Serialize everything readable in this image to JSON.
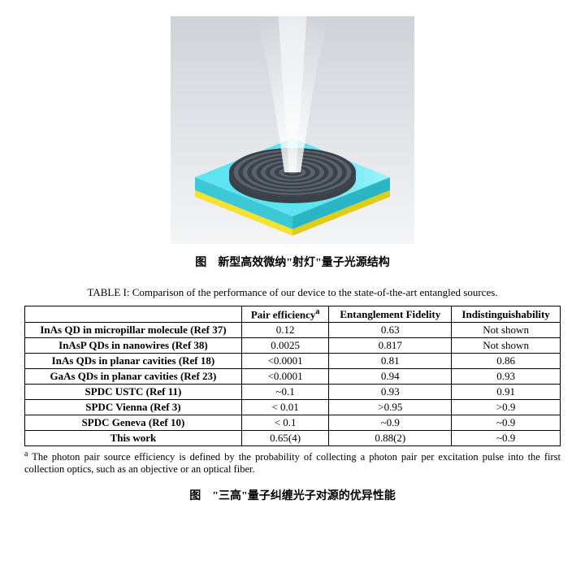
{
  "figure1": {
    "caption": "图　新型高效微纳\"射灯\"量子光源结构",
    "render": {
      "bg_gradient_top": "#cfd3d9",
      "bg_gradient_bottom": "#f4f5f7",
      "slab_top_color": "#5ee4f0",
      "slab_side_color": "#3cc8d6",
      "base_strip_color": "#f7e233",
      "disc_color_dark": "#3b4149",
      "disc_color_light": "#5a636d",
      "beam_color": "#ffffff",
      "ring_count": 14
    }
  },
  "table1": {
    "title": "TABLE I: Comparison of the performance of our device to the state-of-the-art entangled sources.",
    "headers": {
      "blank": "",
      "col1_html": "Pair efficiency<span class='sup'>a</span>",
      "col2": "Entanglement Fidelity",
      "col3": "Indistinguishability"
    },
    "rows": [
      {
        "label": "InAs QD in micropillar molecule (Ref 37)",
        "c1": "0.12",
        "c2": "0.63",
        "c3": "Not shown"
      },
      {
        "label": "InAsP QDs in nanowires (Ref 38)",
        "c1": "0.0025",
        "c2": "0.817",
        "c3": "Not shown"
      },
      {
        "label": "InAs QDs in planar cavities (Ref 18)",
        "c1": "<0.0001",
        "c2": "0.81",
        "c3": "0.86"
      },
      {
        "label": "GaAs QDs in planar cavities (Ref 23)",
        "c1": "<0.0001",
        "c2": "0.94",
        "c3": "0.93"
      },
      {
        "label": "SPDC USTC (Ref 11)",
        "c1": "~0.1",
        "c2": "0.93",
        "c3": "0.91"
      },
      {
        "label": "SPDC Vienna (Ref 3)",
        "c1": "< 0.01",
        "c2": ">0.95",
        "c3": ">0.9"
      },
      {
        "label": "SPDC Geneva (Ref 10)",
        "c1": "< 0.1",
        "c2": "~0.9",
        "c3": "~0.9"
      },
      {
        "label": "This work",
        "c1": "0.65(4)",
        "c2": "0.88(2)",
        "c3": "~0.9"
      }
    ],
    "footnote_html": "<span class='sup'>a</span> The photon pair source efficiency is defined by the probability of collecting a photon pair per excitation pulse into the first collection optics, such as an objective or an optical fiber."
  },
  "figure2": {
    "caption": "图　\"三高\"量子纠缠光子对源的优异性能"
  }
}
